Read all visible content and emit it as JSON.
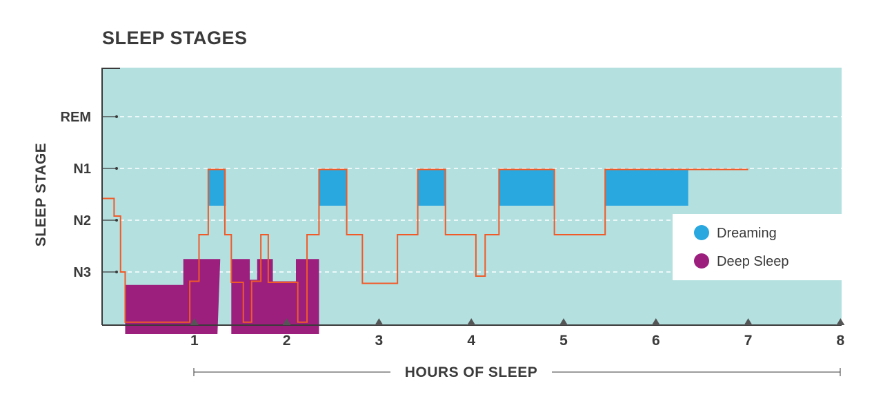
{
  "chart_data": {
    "type": "area",
    "title": "SLEEP STAGES",
    "xlabel": "HOURS OF SLEEP",
    "ylabel": "SLEEP STAGE",
    "xlim": [
      0,
      8
    ],
    "x_ticks": [
      "1",
      "2",
      "3",
      "4",
      "5",
      "6",
      "7",
      "8"
    ],
    "y_categories": [
      "N3",
      "N2",
      "N1",
      "REM"
    ],
    "grid": "horizontal dashed at stage levels",
    "legend": {
      "position": "right",
      "entries": [
        {
          "label": "Dreaming",
          "color": "#29a8e0"
        },
        {
          "label": "Deep Sleep",
          "color": "#9c1f7e"
        }
      ]
    },
    "series": [
      {
        "kind": "line",
        "color": "#f05a28",
        "points": [
          [
            0,
            1.42
          ],
          [
            0.13,
            1.42
          ],
          [
            0.13,
            1.08
          ],
          [
            0.2,
            1.08
          ],
          [
            0.2,
            0
          ],
          [
            0.25,
            0
          ],
          [
            0.25,
            -0.97
          ],
          [
            0.95,
            -0.97
          ],
          [
            0.95,
            -0.18
          ],
          [
            1.05,
            -0.18
          ],
          [
            1.05,
            0.72
          ],
          [
            1.15,
            0.72
          ],
          [
            1.15,
            1.98
          ],
          [
            1.33,
            1.98
          ],
          [
            1.33,
            0.72
          ],
          [
            1.4,
            0.72
          ],
          [
            1.4,
            -0.2
          ],
          [
            1.53,
            -0.2
          ],
          [
            1.53,
            -0.97
          ],
          [
            1.62,
            -0.97
          ],
          [
            1.62,
            -0.18
          ],
          [
            1.72,
            -0.18
          ],
          [
            1.72,
            0.72
          ],
          [
            1.8,
            0.72
          ],
          [
            1.8,
            -0.2
          ],
          [
            2.12,
            -0.2
          ],
          [
            2.12,
            -0.97
          ],
          [
            2.22,
            -0.97
          ],
          [
            2.22,
            0.72
          ],
          [
            2.35,
            0.72
          ],
          [
            2.35,
            1.98
          ],
          [
            2.65,
            1.98
          ],
          [
            2.65,
            0.72
          ],
          [
            2.82,
            0.72
          ],
          [
            2.82,
            -0.22
          ],
          [
            3.2,
            -0.22
          ],
          [
            3.2,
            0.72
          ],
          [
            3.42,
            0.72
          ],
          [
            3.42,
            1.98
          ],
          [
            3.72,
            1.98
          ],
          [
            3.72,
            0.72
          ],
          [
            4.05,
            0.72
          ],
          [
            4.05,
            -0.08
          ],
          [
            4.15,
            -0.08
          ],
          [
            4.15,
            0.72
          ],
          [
            4.3,
            0.72
          ],
          [
            4.3,
            1.98
          ],
          [
            4.9,
            1.98
          ],
          [
            4.9,
            0.72
          ],
          [
            5.45,
            0.72
          ],
          [
            5.45,
            1.98
          ],
          [
            7,
            1.98
          ]
        ]
      },
      {
        "kind": "area",
        "name": "Dreaming",
        "color": "#29a8e0",
        "bands": [
          [
            1.15,
            1.34
          ],
          [
            2.35,
            2.65
          ],
          [
            3.42,
            3.72
          ],
          [
            4.3,
            4.9
          ],
          [
            5.45,
            6.35
          ]
        ],
        "range": [
          1.28,
          1.98
        ]
      },
      {
        "kind": "area",
        "name": "Deep Sleep",
        "color": "#9c1f7e",
        "polygons": [
          [
            [
              0.25,
              -1.2
            ],
            [
              1.25,
              -1.2
            ],
            [
              1.28,
              0.25
            ],
            [
              0.88,
              0.25
            ],
            [
              0.88,
              -0.25
            ],
            [
              0.25,
              -0.25
            ]
          ],
          [
            [
              1.4,
              -1.2
            ],
            [
              2.35,
              -1.2
            ],
            [
              2.35,
              0.25
            ],
            [
              2.1,
              0.25
            ],
            [
              2.1,
              -0.18
            ],
            [
              1.85,
              -0.18
            ],
            [
              1.85,
              0.25
            ],
            [
              1.68,
              0.25
            ],
            [
              1.68,
              -0.15
            ],
            [
              1.6,
              -0.15
            ],
            [
              1.6,
              0.25
            ],
            [
              1.4,
              0.25
            ]
          ]
        ]
      }
    ]
  }
}
